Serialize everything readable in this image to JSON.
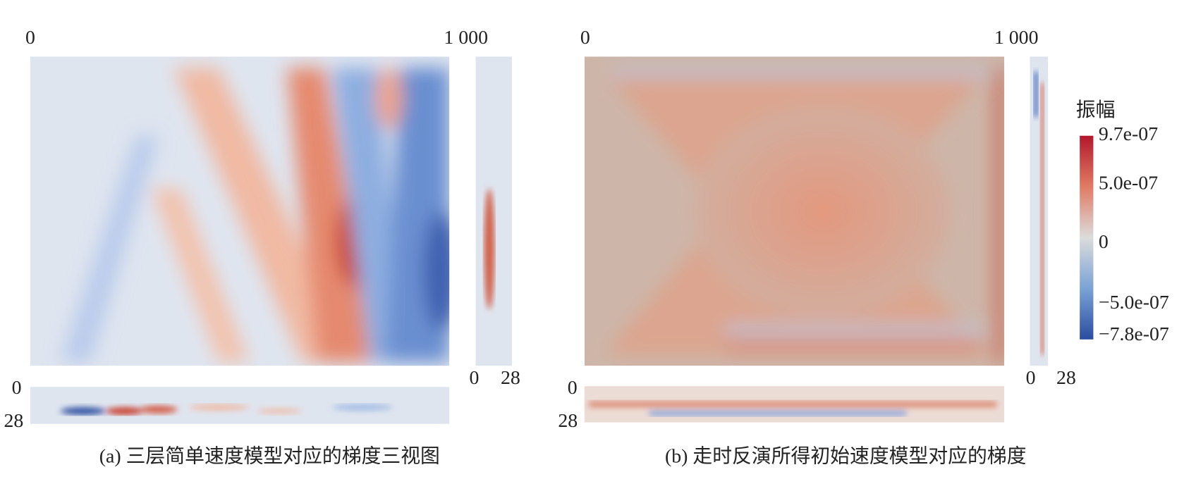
{
  "panels": [
    {
      "caption": "(a) 三层简单速度模型对应的梯度三视图",
      "top_axis": [
        "0",
        "1 000"
      ],
      "side_axis": [
        "0",
        "28"
      ],
      "bottom_axis": [
        "0",
        "28"
      ]
    },
    {
      "caption": "(b) 走时反演所得初始速度模型对应的梯度",
      "top_axis": [
        "0",
        "1 000"
      ],
      "side_axis": [
        "0",
        "28"
      ],
      "bottom_axis": [
        "0",
        "28"
      ]
    }
  ],
  "colorbar": {
    "title": "振幅",
    "labels": [
      "9.7e-07",
      "5.0e-07",
      "0",
      "−5.0e-07",
      "−7.8e-07"
    ]
  }
}
